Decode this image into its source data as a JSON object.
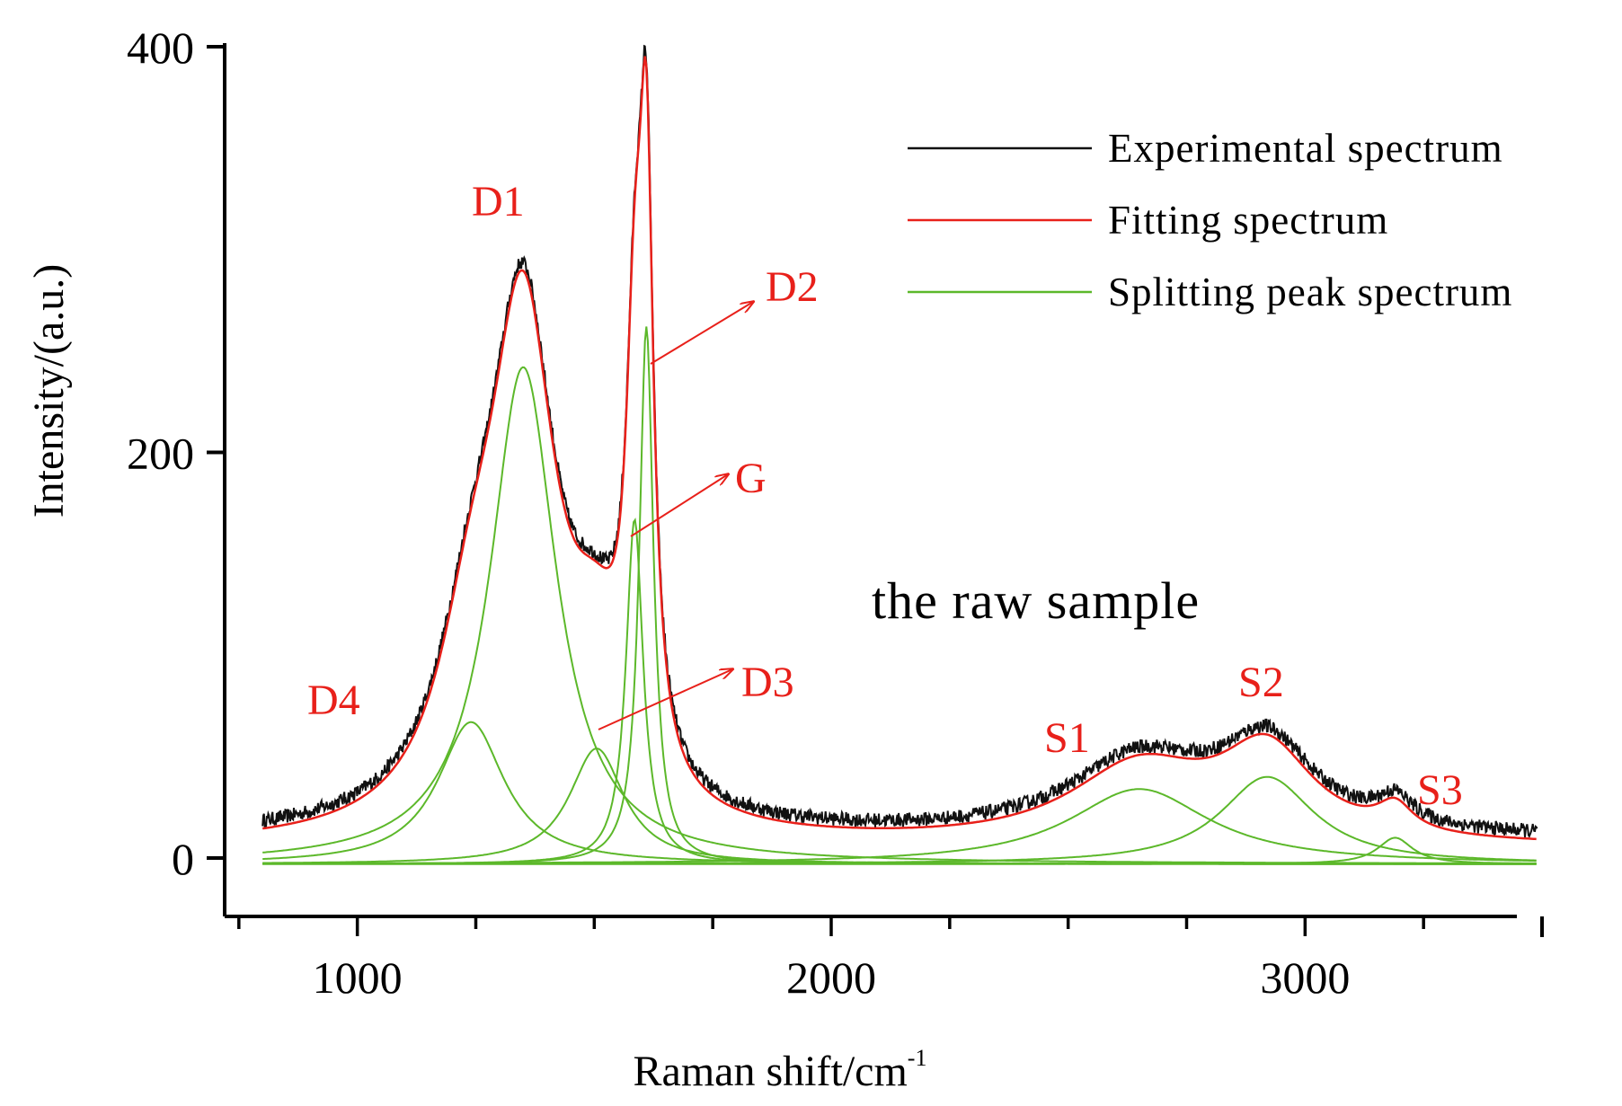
{
  "chart_data": {
    "type": "line",
    "title": "",
    "xlabel": "Raman shift/cm",
    "xlabel_superscript": "-1",
    "ylabel": "Intensity/(a.u.)",
    "xlim": [
      720,
      3500
    ],
    "ylim": [
      -30,
      410
    ],
    "xticks": [
      1000,
      2000,
      3000
    ],
    "xtick_labels": [
      "1000",
      "2000",
      "3000"
    ],
    "yticks": [
      0,
      200,
      400
    ],
    "ytick_labels": [
      "0",
      "200",
      "400"
    ],
    "grid": false,
    "legend_position": "top-right",
    "annotation": "the raw sample",
    "colors": {
      "experimental": "#111111",
      "fitting": "#e8201a",
      "splitting": "#5cb82a",
      "label": "#e8201a"
    },
    "series": [
      {
        "name": "Experimental spectrum",
        "color": "#111111"
      },
      {
        "name": "Fitting spectrum",
        "color": "#e8201a"
      },
      {
        "name": "Splitting peak spectrum",
        "color": "#5cb82a"
      }
    ],
    "peaks": [
      {
        "name": "D4",
        "center": 1240,
        "height": 70,
        "width": 85,
        "base": -3
      },
      {
        "name": "D1",
        "center": 1350,
        "height": 245,
        "width": 85,
        "base": -3
      },
      {
        "name": "D3",
        "center": 1505,
        "height": 57,
        "width": 70,
        "base": -3
      },
      {
        "name": "G",
        "center": 1585,
        "height": 170,
        "width": 22,
        "base": -3
      },
      {
        "name": "D2",
        "center": 1610,
        "height": 265,
        "width": 18,
        "base": -3
      },
      {
        "name": "S1",
        "center": 2650,
        "height": 37,
        "width": 180,
        "base": -3
      },
      {
        "name": "S2",
        "center": 2920,
        "height": 43,
        "width": 120,
        "base": -3
      },
      {
        "name": "S3",
        "center": 3190,
        "height": 13,
        "width": 45,
        "base": -3
      }
    ],
    "labels": [
      {
        "text": "D1"
      },
      {
        "text": "D2"
      },
      {
        "text": "G"
      },
      {
        "text": "D3"
      },
      {
        "text": "D4"
      },
      {
        "text": "S1"
      },
      {
        "text": "S2"
      },
      {
        "text": "S3"
      }
    ]
  }
}
